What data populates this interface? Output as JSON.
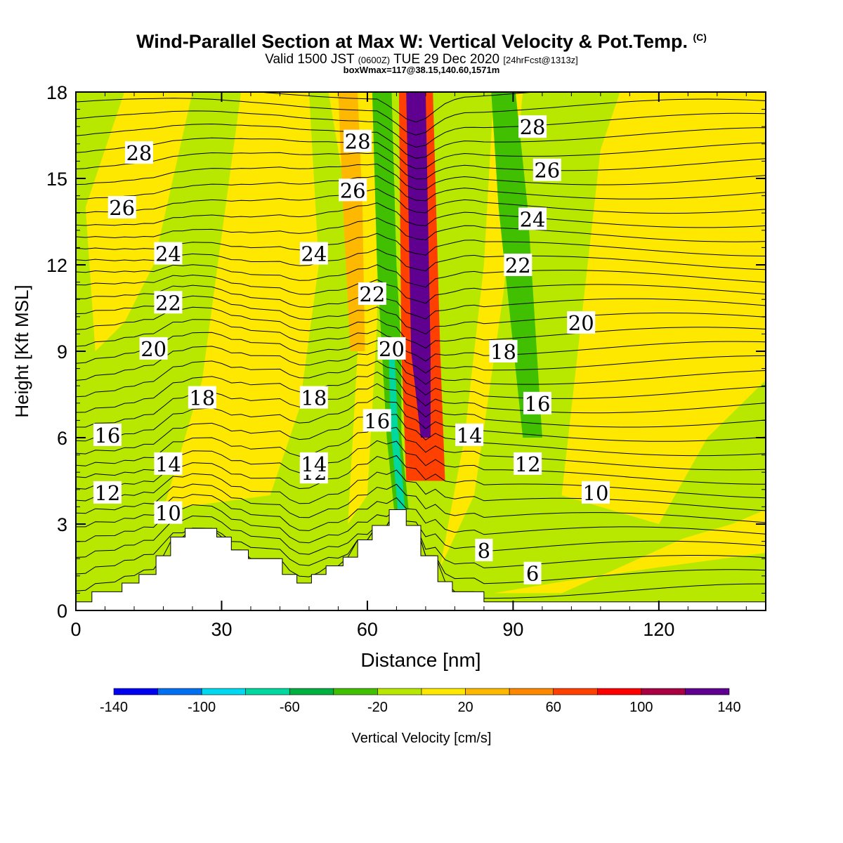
{
  "header": {
    "title": "Wind-Parallel Section at Max W: Vertical Velocity & Pot.Temp.",
    "copyright": "(C)",
    "valid_prefix": "Valid 1500 JST",
    "valid_z": "(0600Z)",
    "valid_date": "TUE 29 Dec 2020",
    "forecast": "[24hrFcst@1313z]",
    "box": "boxWmax=117@38.15,140.60,1571m"
  },
  "chart_data": {
    "type": "heatmap",
    "xlabel": "Distance [nm]",
    "ylabel": "Height [Kft MSL]",
    "xlim": [
      0,
      142
    ],
    "ylim": [
      0,
      18
    ],
    "x_ticks": [
      "0",
      "30",
      "60",
      "90",
      "120"
    ],
    "y_ticks": [
      "0",
      "3",
      "6",
      "9",
      "12",
      "15",
      "18"
    ],
    "colorbar": {
      "label": "Vertical Velocity [cm/s]",
      "tick_labels": [
        "-140",
        "-100",
        "-60",
        "-20",
        "20",
        "60",
        "100",
        "140"
      ],
      "colors": [
        "#0000f0",
        "#0070f0",
        "#00d8f0",
        "#00d8a0",
        "#00b040",
        "#40c000",
        "#b8e800",
        "#ffe800",
        "#ffb800",
        "#ff8800",
        "#ff4000",
        "#ff0000",
        "#a80040",
        "#600090"
      ]
    },
    "terrain": [
      [
        0,
        0.3
      ],
      [
        3.3,
        0.3
      ],
      [
        3.3,
        0.65
      ],
      [
        9.5,
        0.65
      ],
      [
        9.5,
        0.95
      ],
      [
        13,
        0.95
      ],
      [
        13,
        1.25
      ],
      [
        16.5,
        1.25
      ],
      [
        16.5,
        1.9
      ],
      [
        19.5,
        1.9
      ],
      [
        19.5,
        2.55
      ],
      [
        22.5,
        2.55
      ],
      [
        22.5,
        2.85
      ],
      [
        29,
        2.85
      ],
      [
        29,
        2.55
      ],
      [
        32,
        2.55
      ],
      [
        32,
        2.1
      ],
      [
        35.5,
        2.1
      ],
      [
        35.5,
        1.8
      ],
      [
        42.5,
        1.8
      ],
      [
        42.5,
        1.25
      ],
      [
        45.5,
        1.25
      ],
      [
        45.5,
        0.95
      ],
      [
        48.5,
        0.95
      ],
      [
        48.5,
        1.25
      ],
      [
        51.5,
        1.25
      ],
      [
        51.5,
        1.55
      ],
      [
        55,
        1.55
      ],
      [
        55,
        1.85
      ],
      [
        58,
        1.85
      ],
      [
        58,
        2.45
      ],
      [
        61,
        2.45
      ],
      [
        61,
        2.95
      ],
      [
        64.5,
        2.95
      ],
      [
        64.5,
        3.5
      ],
      [
        68,
        3.5
      ],
      [
        68,
        2.95
      ],
      [
        71,
        2.95
      ],
      [
        71,
        1.9
      ],
      [
        74.5,
        1.9
      ],
      [
        74.5,
        1.0
      ],
      [
        77.5,
        1.0
      ],
      [
        77.5,
        0.65
      ],
      [
        84,
        0.65
      ],
      [
        84,
        0.3
      ],
      [
        142,
        0.3
      ]
    ],
    "features": [
      {
        "kind": "band",
        "value": -30,
        "x": [
          67,
          65.5,
          65,
          64,
          63.5,
          63
        ],
        "y": [
          3.5,
          6,
          9,
          12,
          15,
          18
        ],
        "w": [
          3,
          3,
          4,
          4,
          4,
          4
        ]
      },
      {
        "kind": "band",
        "value": -70,
        "x": [
          67,
          65.5,
          65
        ],
        "y": [
          3.5,
          6.5,
          9
        ],
        "w": [
          1.5,
          1.5,
          1.2
        ]
      },
      {
        "kind": "band",
        "value": 70,
        "x": [
          72,
          71,
          70
        ],
        "y": [
          4.5,
          9,
          18
        ],
        "w": [
          8,
          8,
          7
        ]
      },
      {
        "kind": "band",
        "value": 130,
        "x": [
          72,
          71,
          70
        ],
        "y": [
          6,
          9,
          18
        ],
        "w": [
          2,
          4,
          4
        ]
      },
      {
        "kind": "band",
        "value": -30,
        "x": [
          94,
          92,
          90,
          88
        ],
        "y": [
          6,
          10,
          14,
          18
        ],
        "w": [
          4,
          5,
          6,
          5
        ]
      },
      {
        "kind": "band",
        "value": 30,
        "x": [
          58,
          57,
          56
        ],
        "y": [
          9,
          14,
          18
        ],
        "w": [
          3,
          4,
          4
        ]
      }
    ],
    "isentropes": [
      {
        "label": "6",
        "x": 94,
        "y": 1.3
      },
      {
        "label": "8",
        "x": 84,
        "y": 2.1
      },
      {
        "label": "10",
        "x": 107,
        "y": 4.1
      },
      {
        "label": "10",
        "x": 19,
        "y": 3.4
      },
      {
        "label": "12",
        "x": 6.5,
        "y": 4.1
      },
      {
        "label": "12",
        "x": 49,
        "y": 4.8
      },
      {
        "label": "12",
        "x": 93,
        "y": 5.1
      },
      {
        "label": "14",
        "x": 19,
        "y": 5.1
      },
      {
        "label": "14",
        "x": 49,
        "y": 5.1
      },
      {
        "label": "14",
        "x": 81,
        "y": 6.1
      },
      {
        "label": "16",
        "x": 6.5,
        "y": 6.1
      },
      {
        "label": "16",
        "x": 62,
        "y": 6.6
      },
      {
        "label": "16",
        "x": 95,
        "y": 7.2
      },
      {
        "label": "18",
        "x": 26,
        "y": 7.4
      },
      {
        "label": "18",
        "x": 49,
        "y": 7.4
      },
      {
        "label": "18",
        "x": 88,
        "y": 9.0
      },
      {
        "label": "20",
        "x": 16,
        "y": 9.1
      },
      {
        "label": "20",
        "x": 65,
        "y": 9.1
      },
      {
        "label": "20",
        "x": 104,
        "y": 10.0
      },
      {
        "label": "22",
        "x": 19,
        "y": 10.7
      },
      {
        "label": "22",
        "x": 61,
        "y": 11.0
      },
      {
        "label": "22",
        "x": 91,
        "y": 12.0
      },
      {
        "label": "24",
        "x": 19,
        "y": 12.4
      },
      {
        "label": "24",
        "x": 49,
        "y": 12.4
      },
      {
        "label": "24",
        "x": 94,
        "y": 13.6
      },
      {
        "label": "26",
        "x": 9.5,
        "y": 14.0
      },
      {
        "label": "26",
        "x": 57,
        "y": 14.6
      },
      {
        "label": "26",
        "x": 97,
        "y": 15.3
      },
      {
        "label": "28",
        "x": 13,
        "y": 15.9
      },
      {
        "label": "28",
        "x": 58,
        "y": 16.3
      },
      {
        "label": "28",
        "x": 94,
        "y": 16.8
      }
    ]
  }
}
